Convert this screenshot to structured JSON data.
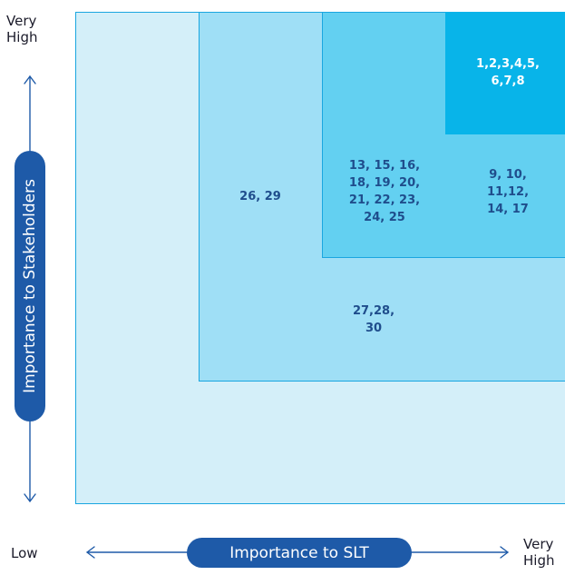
{
  "y_axis": {
    "label": "Importance to Stakeholders",
    "top_label": "Very\nHigh"
  },
  "x_axis": {
    "label": "Importance to SLT",
    "left_label": "Low",
    "right_label": "Very\nHigh"
  },
  "zones": [
    {
      "level": 1,
      "label": ""
    },
    {
      "level": 2,
      "labels": [
        "26, 29",
        "27,28,\n30"
      ]
    },
    {
      "level": 3,
      "labels": [
        "13, 15, 16,\n18, 19, 20,\n21, 22, 23,\n24, 25",
        "9, 10,\n11,12,\n14, 17"
      ]
    },
    {
      "level": 4,
      "labels": [
        "1,2,3,4,5,\n6,7,8"
      ]
    }
  ],
  "colors": {
    "zone1": "#d4eff9",
    "zone2": "#9fdff6",
    "zone3": "#63d0f1",
    "zone4": "#08b4e9",
    "pill": "#1e5aa8",
    "label_text": "#1f4d8c"
  }
}
